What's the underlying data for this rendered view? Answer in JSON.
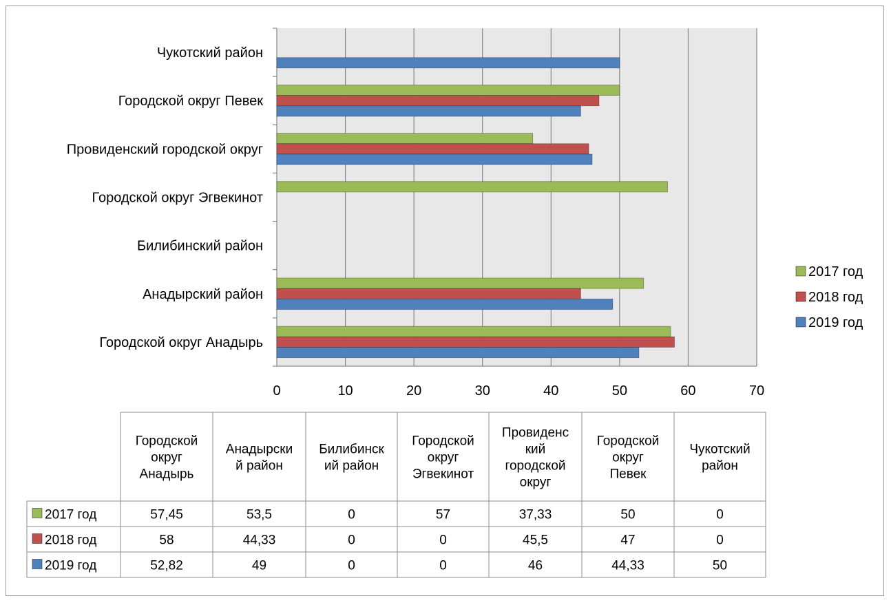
{
  "chart_data": {
    "type": "bar",
    "orientation": "horizontal",
    "categories": [
      "Городской округ Анадырь",
      "Анадырский район",
      "Билибинский район",
      "Городской округ Эгвекинот",
      "Провиденский городской округ",
      "Городской округ Певек",
      "Чукотский район"
    ],
    "series": [
      {
        "name": "2017 год",
        "color": "#9bbb59",
        "values": [
          57.45,
          53.5,
          0,
          57,
          37.33,
          50,
          0
        ]
      },
      {
        "name": "2018 год",
        "color": "#c0504d",
        "values": [
          58,
          44.33,
          0,
          0,
          45.5,
          47,
          0
        ]
      },
      {
        "name": "2019 год",
        "color": "#4f81bd",
        "values": [
          52.82,
          49,
          0,
          0,
          46,
          44.33,
          50
        ]
      }
    ],
    "xlim": [
      0,
      70
    ],
    "xticks": [
      0,
      10,
      20,
      30,
      40,
      50,
      60,
      70
    ],
    "grid": true,
    "legend_position": "right",
    "data_table": {
      "headers": [
        [
          "Городской",
          "округ",
          "Анадырь"
        ],
        [
          "Анадырски",
          "й район"
        ],
        [
          "Билибинск",
          "ий район"
        ],
        [
          "Городской",
          "округ",
          "Эгвекинот"
        ],
        [
          "Провиденс",
          "кий",
          "городской",
          "округ"
        ],
        [
          "Городской",
          "округ",
          "Певек"
        ],
        [
          "Чукотский",
          "район"
        ]
      ],
      "rows": [
        {
          "label": "2017 год",
          "color": "#9bbb59",
          "cells": [
            "57,45",
            "53,5",
            "0",
            "57",
            "37,33",
            "50",
            "0"
          ]
        },
        {
          "label": "2018 год",
          "color": "#c0504d",
          "cells": [
            "58",
            "44,33",
            "0",
            "0",
            "45,5",
            "47",
            "0"
          ]
        },
        {
          "label": "2019 год",
          "color": "#4f81bd",
          "cells": [
            "52,82",
            "49",
            "0",
            "0",
            "46",
            "44,33",
            "50"
          ]
        }
      ]
    }
  },
  "colors": {
    "plot_background": "#e8e8e8",
    "gridline": "#888888",
    "axis": "#888888"
  }
}
